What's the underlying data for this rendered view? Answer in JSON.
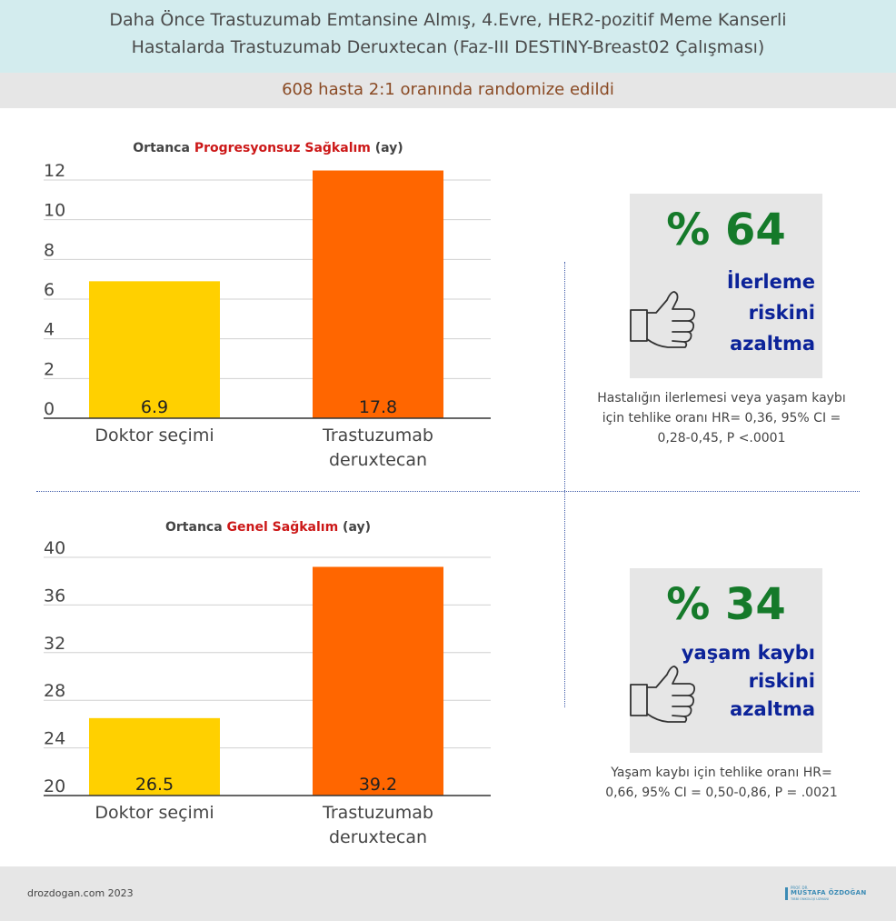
{
  "header": {
    "title_line1": "Daha Önce Trastuzumab Emtansine Almış, 4.Evre, HER2-pozitif Meme Kanserli",
    "title_line2": "Hastalarda Trastuzumab Deruxtecan (Faz-III DESTINY-Breast02 Çalışması)",
    "subtitle": "608 hasta 2:1 oranında randomize edildi"
  },
  "chart_data": [
    {
      "type": "bar",
      "title_prefix": "Ortanca ",
      "title_highlight": "Progresyonsuz Sağkalım",
      "title_suffix": " (ay)",
      "categories": [
        [
          "Doktor seçimi"
        ],
        [
          "Trastuzumab",
          "deruxtecan"
        ]
      ],
      "values": [
        6.9,
        17.8
      ],
      "value_labels": [
        "6.9",
        "17.8"
      ],
      "yticks": [
        0,
        2,
        4,
        6,
        8,
        10,
        12
      ],
      "ylim": [
        0,
        12
      ],
      "colors": [
        "#ffd000",
        "#ff6600"
      ],
      "grid": true
    },
    {
      "type": "bar",
      "title_prefix": "Ortanca ",
      "title_highlight": "Genel Sağkalım",
      "title_suffix": " (ay)",
      "categories": [
        [
          "Doktor seçimi"
        ],
        [
          "Trastuzumab",
          "deruxtecan"
        ]
      ],
      "values": [
        26.5,
        39.2
      ],
      "value_labels": [
        "26.5",
        "39.2"
      ],
      "yticks": [
        20,
        24,
        28,
        32,
        36,
        40
      ],
      "ylim": [
        20,
        40
      ],
      "colors": [
        "#ffd000",
        "#ff6600"
      ],
      "grid": true
    }
  ],
  "stats": [
    {
      "percent": "% 64",
      "lines": [
        "İlerleme",
        "riskini",
        "azaltma"
      ],
      "icon": "thumbs-up-icon",
      "note": "Hastalığın ilerlemesi veya yaşam kaybı için tehlike oranı HR= 0,36, 95% CI = 0,28-0,45, P <.0001"
    },
    {
      "percent": "% 34",
      "lines": [
        "yaşam kaybı",
        "riskini",
        "azaltma"
      ],
      "icon": "thumbs-up-icon",
      "note": "Yaşam kaybı için tehlike oranı HR= 0,66, 95% CI = 0,50-0,86, P = .0021"
    }
  ],
  "footer": {
    "site": "drozdogan.com 2023",
    "logo_small": "PROF. DR.",
    "logo_name": "MUSTAFA ÖZDOĞAN",
    "logo_tag": "TIBBİ ONKOLOJİ UZMANI"
  },
  "colors": {
    "header_bg": "#d3ecee",
    "percent_green": "#157a2a",
    "stat_blue": "#0c2399",
    "highlight_red": "#cc1818"
  }
}
